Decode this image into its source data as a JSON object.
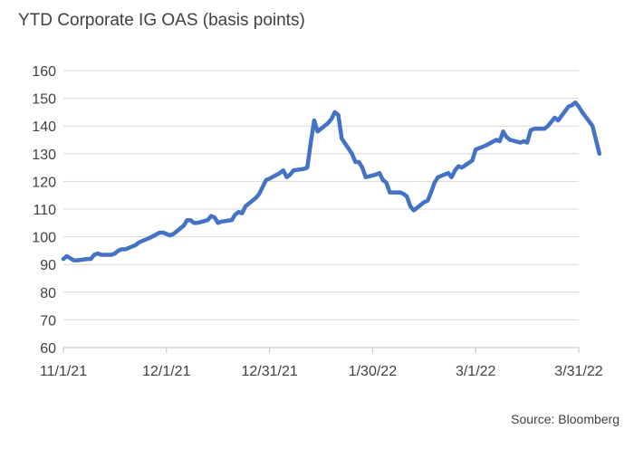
{
  "chart_data": {
    "type": "line",
    "title": "YTD Corporate IG OAS (basis points)",
    "source": "Source: Bloomberg",
    "xlabel": "",
    "ylabel": "",
    "ylim": [
      60,
      160
    ],
    "yticks": [
      60,
      70,
      80,
      90,
      100,
      110,
      120,
      130,
      140,
      150,
      160
    ],
    "xlim": [
      "2021-11-01",
      "2022-03-31"
    ],
    "xticks": [
      {
        "date": "2021-11-01",
        "label": "11/1/21"
      },
      {
        "date": "2021-12-01",
        "label": "12/1/21"
      },
      {
        "date": "2021-12-31",
        "label": "12/31/21"
      },
      {
        "date": "2022-01-30",
        "label": "1/30/22"
      },
      {
        "date": "2022-03-01",
        "label": "3/1/22"
      },
      {
        "date": "2022-03-31",
        "label": "3/31/22"
      }
    ],
    "grid": true,
    "legend": "none",
    "line_color": "#4472C4",
    "series": [
      {
        "points": [
          [
            "2021-11-01",
            92
          ],
          [
            "2021-11-02",
            93
          ],
          [
            "2021-11-04",
            91.5
          ],
          [
            "2021-11-05",
            91.5
          ],
          [
            "2021-11-08",
            92
          ],
          [
            "2021-11-09",
            92
          ],
          [
            "2021-11-10",
            93.5
          ],
          [
            "2021-11-11",
            94
          ],
          [
            "2021-11-12",
            93.5
          ],
          [
            "2021-11-15",
            93.5
          ],
          [
            "2021-11-16",
            94
          ],
          [
            "2021-11-17",
            95
          ],
          [
            "2021-11-18",
            95.5
          ],
          [
            "2021-11-19",
            95.5
          ],
          [
            "2021-11-22",
            97
          ],
          [
            "2021-11-23",
            98
          ],
          [
            "2021-11-24",
            98.5
          ],
          [
            "2021-11-26",
            99.5
          ],
          [
            "2021-11-29",
            101.5
          ],
          [
            "2021-11-30",
            101.5
          ],
          [
            "2021-12-01",
            101
          ],
          [
            "2021-12-02",
            100.5
          ],
          [
            "2021-12-03",
            101
          ],
          [
            "2021-12-06",
            104
          ],
          [
            "2021-12-07",
            106
          ],
          [
            "2021-12-08",
            106
          ],
          [
            "2021-12-09",
            105
          ],
          [
            "2021-12-10",
            105
          ],
          [
            "2021-12-13",
            106
          ],
          [
            "2021-12-14",
            107.5
          ],
          [
            "2021-12-15",
            107
          ],
          [
            "2021-12-16",
            105
          ],
          [
            "2021-12-17",
            105.5
          ],
          [
            "2021-12-20",
            106
          ],
          [
            "2021-12-21",
            108
          ],
          [
            "2021-12-22",
            109
          ],
          [
            "2021-12-23",
            108.5
          ],
          [
            "2021-12-24",
            111
          ],
          [
            "2021-12-27",
            114
          ],
          [
            "2021-12-28",
            115.5
          ],
          [
            "2021-12-29",
            118
          ],
          [
            "2021-12-30",
            120.5
          ],
          [
            "2021-12-31",
            121
          ],
          [
            "2022-01-03",
            123
          ],
          [
            "2022-01-04",
            124
          ],
          [
            "2022-01-05",
            121.5
          ],
          [
            "2022-01-06",
            122.5
          ],
          [
            "2022-01-07",
            124
          ],
          [
            "2022-01-10",
            124.5
          ],
          [
            "2022-01-11",
            125
          ],
          [
            "2022-01-12",
            134
          ],
          [
            "2022-01-13",
            142
          ],
          [
            "2022-01-14",
            138
          ],
          [
            "2022-01-17",
            141
          ],
          [
            "2022-01-18",
            142.5
          ],
          [
            "2022-01-19",
            145
          ],
          [
            "2022-01-20",
            144
          ],
          [
            "2022-01-21",
            135.5
          ],
          [
            "2022-01-24",
            130
          ],
          [
            "2022-01-25",
            127
          ],
          [
            "2022-01-26",
            127
          ],
          [
            "2022-01-27",
            125
          ],
          [
            "2022-01-28",
            121.5
          ],
          [
            "2022-01-31",
            122.5
          ],
          [
            "2022-02-01",
            123
          ],
          [
            "2022-02-02",
            120.5
          ],
          [
            "2022-02-03",
            119.5
          ],
          [
            "2022-02-04",
            116
          ],
          [
            "2022-02-07",
            116
          ],
          [
            "2022-02-08",
            115.5
          ],
          [
            "2022-02-09",
            114.5
          ],
          [
            "2022-02-10",
            111
          ],
          [
            "2022-02-11",
            109.5
          ],
          [
            "2022-02-14",
            112.5
          ],
          [
            "2022-02-15",
            113
          ],
          [
            "2022-02-16",
            116
          ],
          [
            "2022-02-17",
            119.5
          ],
          [
            "2022-02-18",
            121.5
          ],
          [
            "2022-02-21",
            123
          ],
          [
            "2022-02-22",
            121.5
          ],
          [
            "2022-02-23",
            124
          ],
          [
            "2022-02-24",
            125.5
          ],
          [
            "2022-02-25",
            125
          ],
          [
            "2022-02-28",
            127.5
          ],
          [
            "2022-03-01",
            131.5
          ],
          [
            "2022-03-02",
            132
          ],
          [
            "2022-03-03",
            132.5
          ],
          [
            "2022-03-04",
            133
          ],
          [
            "2022-03-07",
            135
          ],
          [
            "2022-03-08",
            134.5
          ],
          [
            "2022-03-09",
            138
          ],
          [
            "2022-03-10",
            136
          ],
          [
            "2022-03-11",
            135
          ],
          [
            "2022-03-14",
            134
          ],
          [
            "2022-03-15",
            134.5
          ],
          [
            "2022-03-16",
            134
          ],
          [
            "2022-03-17",
            138.5
          ],
          [
            "2022-03-18",
            139
          ],
          [
            "2022-03-21",
            139
          ],
          [
            "2022-03-22",
            140
          ],
          [
            "2022-03-23",
            141.5
          ],
          [
            "2022-03-24",
            143
          ],
          [
            "2022-03-25",
            142
          ],
          [
            "2022-03-28",
            147
          ],
          [
            "2022-03-29",
            147.5
          ],
          [
            "2022-03-30",
            148.5
          ],
          [
            "2022-03-31",
            147
          ],
          [
            "2022-04-01",
            145
          ],
          [
            "2022-04-04",
            140
          ],
          [
            "2022-04-05",
            135
          ],
          [
            "2022-04-06",
            130
          ]
        ]
      }
    ]
  }
}
